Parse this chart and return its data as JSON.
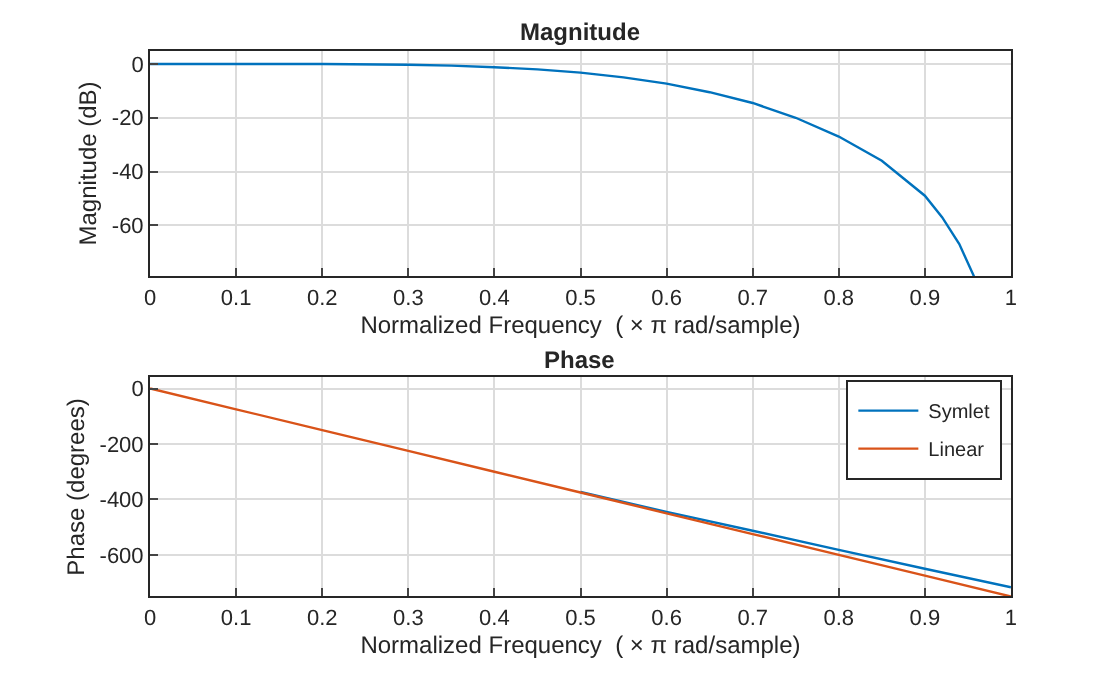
{
  "chart_data": [
    {
      "type": "line",
      "title": "Magnitude",
      "xlabel": "Normalized Frequency  ( × π rad/sample)",
      "ylabel": "Magnitude (dB)",
      "x": [
        0,
        0.1,
        0.2,
        0.3,
        0.35,
        0.4,
        0.45,
        0.5,
        0.55,
        0.6,
        0.65,
        0.7,
        0.75,
        0.8,
        0.85,
        0.9,
        0.92,
        0.94,
        0.957
      ],
      "series": [
        {
          "color": "#0072bd",
          "values": [
            0,
            0,
            0,
            -0.3,
            -0.6,
            -1.2,
            -2,
            -3.2,
            -5,
            -7.3,
            -10.5,
            -14.5,
            -20,
            -27,
            -36,
            -49,
            -57,
            -67,
            -79
          ]
        }
      ],
      "xlim": [
        0,
        1
      ],
      "xticks": [
        0,
        0.1,
        0.2,
        0.3,
        0.4,
        0.5,
        0.6,
        0.7,
        0.8,
        0.9,
        1
      ],
      "ylim": [
        -79,
        5
      ],
      "yticks": [
        -60,
        -40,
        -20,
        0
      ],
      "grid": true
    },
    {
      "type": "line",
      "title": "Phase",
      "xlabel": "Normalized Frequency  ( × π rad/sample)",
      "ylabel": "Phase (degrees)",
      "x": [
        0,
        0.1,
        0.2,
        0.3,
        0.4,
        0.5,
        0.6,
        0.7,
        0.8,
        0.9,
        1
      ],
      "series": [
        {
          "name": "Symlet",
          "color": "#0072bd",
          "values": [
            null,
            null,
            null,
            null,
            null,
            -373,
            -445,
            -513,
            -582,
            -650,
            -717
          ]
        },
        {
          "name": "Linear",
          "color": "#d95319",
          "values": [
            0,
            -75,
            -150,
            -225,
            -300,
            -375,
            -450,
            -525,
            -600,
            -675,
            -750
          ]
        }
      ],
      "xlim": [
        0,
        1
      ],
      "xticks": [
        0,
        0.1,
        0.2,
        0.3,
        0.4,
        0.5,
        0.6,
        0.7,
        0.8,
        0.9,
        1
      ],
      "ylim": [
        -750,
        40
      ],
      "yticks": [
        -600,
        -400,
        -200,
        0
      ],
      "grid": true,
      "legend": "top right"
    }
  ]
}
